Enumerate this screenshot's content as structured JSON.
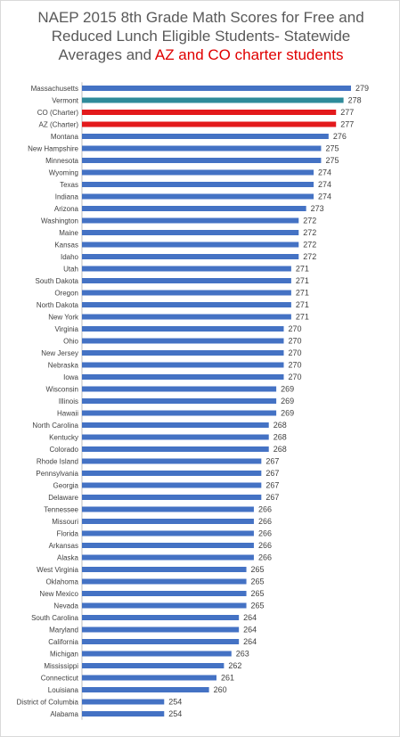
{
  "chart_data": {
    "type": "bar",
    "orientation": "horizontal",
    "title_lines": [
      {
        "text": "NAEP 2015 8th Grade Math Scores for Free and",
        "highlight": ""
      },
      {
        "text": "Reduced Lunch Eligible  Students- Statewide",
        "highlight": ""
      },
      {
        "text": "Averages and ",
        "highlight": "AZ and CO charter students"
      }
    ],
    "categories": [
      "Massachusetts",
      "Vermont",
      "CO (Charter)",
      "AZ (Charter)",
      "Montana",
      "New Hampshire",
      "Minnesota",
      "Wyoming",
      "Texas",
      "Indiana",
      "Arizona",
      "Washington",
      "Maine",
      "Kansas",
      "Idaho",
      "Utah",
      "South Dakota",
      "Oregon",
      "North Dakota",
      "New York",
      "Virginia",
      "Ohio",
      "New Jersey",
      "Nebraska",
      "Iowa",
      "Wisconsin",
      "Illinois",
      "Hawaii",
      "North Carolina",
      "Kentucky",
      "Colorado",
      "Rhode Island",
      "Pennsylvania",
      "Georgia",
      "Delaware",
      "Tennessee",
      "Missouri",
      "Florida",
      "Arkansas",
      "Alaska",
      "West Virginia",
      "Oklahoma",
      "New Mexico",
      "Nevada",
      "South Carolina",
      "Maryland",
      "California",
      "Michigan",
      "Mississippi",
      "Connecticut",
      "Louisiana",
      "District of Columbia",
      "Alabama"
    ],
    "values": [
      279,
      278,
      277,
      277,
      276,
      275,
      275,
      274,
      274,
      274,
      273,
      272,
      272,
      272,
      272,
      271,
      271,
      271,
      271,
      271,
      270,
      270,
      270,
      270,
      270,
      269,
      269,
      269,
      268,
      268,
      268,
      267,
      267,
      267,
      267,
      266,
      266,
      266,
      266,
      266,
      265,
      265,
      265,
      265,
      264,
      264,
      264,
      263,
      262,
      261,
      260,
      254,
      254
    ],
    "bar_colors": [
      "#4472c4",
      "#2e8b9a",
      "#e31a1c",
      "#e31a1c",
      "#4472c4",
      "#4472c4",
      "#4472c4",
      "#4472c4",
      "#4472c4",
      "#4472c4",
      "#4472c4",
      "#4472c4",
      "#4472c4",
      "#4472c4",
      "#4472c4",
      "#4472c4",
      "#4472c4",
      "#4472c4",
      "#4472c4",
      "#4472c4",
      "#4472c4",
      "#4472c4",
      "#4472c4",
      "#4472c4",
      "#4472c4",
      "#4472c4",
      "#4472c4",
      "#4472c4",
      "#4472c4",
      "#4472c4",
      "#4472c4",
      "#4472c4",
      "#4472c4",
      "#4472c4",
      "#4472c4",
      "#4472c4",
      "#4472c4",
      "#4472c4",
      "#4472c4",
      "#4472c4",
      "#4472c4",
      "#4472c4",
      "#4472c4",
      "#4472c4",
      "#4472c4",
      "#4472c4",
      "#4472c4",
      "#4472c4",
      "#4472c4",
      "#4472c4",
      "#4472c4",
      "#4472c4",
      "#4472c4"
    ],
    "title_color": "#595959",
    "highlight_color": "#e00000",
    "xlim": [
      243,
      279
    ],
    "grid": false,
    "legend": "none",
    "data_labels": true
  }
}
